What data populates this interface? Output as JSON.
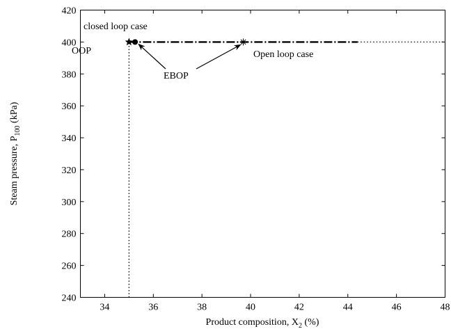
{
  "chart_data": {
    "type": "line",
    "xlabel_main": "Product composition, X",
    "xlabel_sub": "2",
    "xlabel_unit": " (%)",
    "ylabel_main": "Steam pressure, P",
    "ylabel_sub": "100",
    "ylabel_unit": " (kPa)",
    "xlim": [
      33,
      48
    ],
    "ylim": [
      240,
      420
    ],
    "xticks": [
      34,
      36,
      38,
      40,
      42,
      44,
      46,
      48
    ],
    "yticks": [
      240,
      260,
      280,
      300,
      320,
      340,
      360,
      380,
      400,
      420
    ],
    "grid": false,
    "series": [
      {
        "style": "dash-dot",
        "x": [
          35.0,
          44.4
        ],
        "y": [
          400,
          400
        ]
      },
      {
        "style": "dotted",
        "x": [
          44.4,
          48.0
        ],
        "y": [
          400,
          400
        ]
      },
      {
        "style": "dotted",
        "x": [
          35.0,
          35.0
        ],
        "y": [
          240,
          400
        ]
      }
    ],
    "points": [
      {
        "label": "OOP",
        "marker": "star-filled",
        "x": 35.0,
        "y": 400
      },
      {
        "label": "EBOP",
        "marker": "circle-filled",
        "x": 35.25,
        "y": 400
      },
      {
        "marker": "asterisk",
        "x": 39.7,
        "y": 400
      }
    ],
    "annotations": [
      {
        "id": "closed",
        "text": "closed loop case"
      },
      {
        "id": "oop",
        "text": "OOP"
      },
      {
        "id": "open",
        "text": "Open loop case"
      },
      {
        "id": "ebop",
        "text": "EBOP"
      }
    ]
  }
}
